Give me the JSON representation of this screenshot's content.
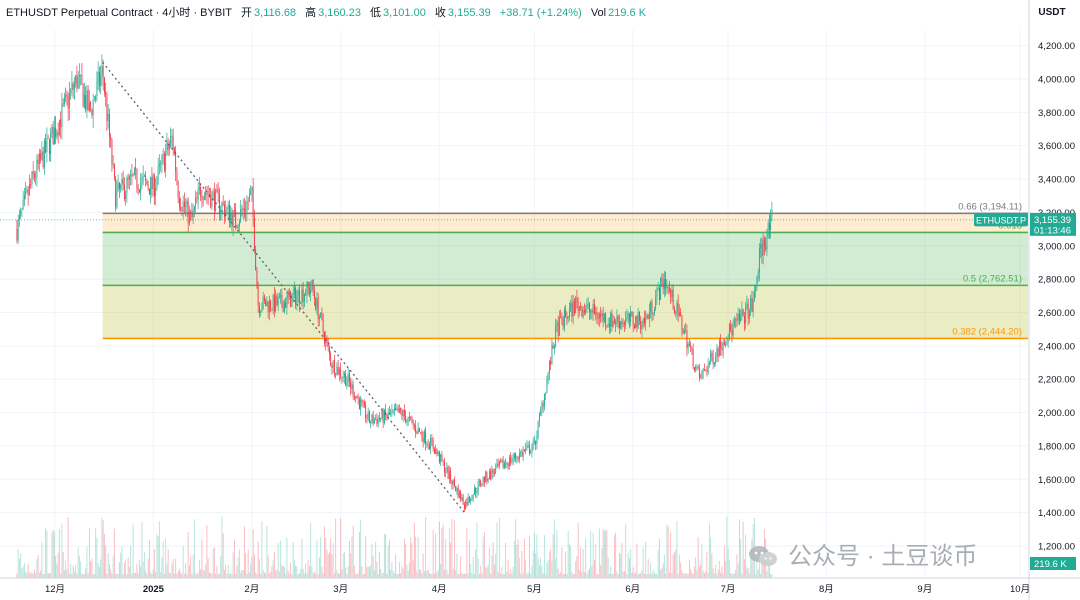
{
  "header": {
    "symbol": "ETHUSDT Perpetual Contract · 4小时 · BYBIT",
    "open_label": "开",
    "open": "3,116.68",
    "high_label": "高",
    "high": "3,160.23",
    "low_label": "低",
    "low": "3,101.00",
    "close_label": "收",
    "close": "3,155.39",
    "change": "+38.71 (+1.24%)",
    "vol_label": "Vol",
    "vol": "219.6 K"
  },
  "currency": "USDT",
  "watermark": "公众号 · 土豆谈币",
  "chart_data": {
    "type": "candlestick",
    "ylim": [
      1100,
      4300
    ],
    "yticks": [
      "4,200.00",
      "4,000.00",
      "3,800.00",
      "3,600.00",
      "3,400.00",
      "3,200.00",
      "3,000.00",
      "2,800.00",
      "2,600.00",
      "2,400.00",
      "2,200.00",
      "2,000.00",
      "1,800.00",
      "1,600.00",
      "1,400.00",
      "1,200.00"
    ],
    "ytick_values": [
      4200,
      4000,
      3800,
      3600,
      3400,
      3200,
      3000,
      2800,
      2600,
      2400,
      2200,
      2000,
      1800,
      1600,
      1400,
      1200
    ],
    "xticks": [
      "12月",
      "2025",
      "2月",
      "3月",
      "4月",
      "5月",
      "6月",
      "7月",
      "8月",
      "9月",
      "10月"
    ],
    "price_path": [
      [
        "2024-11-19",
        3100
      ],
      [
        "2024-11-24",
        3400
      ],
      [
        "2024-11-30",
        3650
      ],
      [
        "2024-12-08",
        4000
      ],
      [
        "2024-12-12",
        3800
      ],
      [
        "2024-12-16",
        4050
      ],
      [
        "2024-12-20",
        3300
      ],
      [
        "2024-12-26",
        3400
      ],
      [
        "2025-01-01",
        3350
      ],
      [
        "2025-01-07",
        3650
      ],
      [
        "2025-01-09",
        3300
      ],
      [
        "2025-01-13",
        3150
      ],
      [
        "2025-01-16",
        3350
      ],
      [
        "2025-01-22",
        3250
      ],
      [
        "2025-01-27",
        3150
      ],
      [
        "2025-02-01",
        3300
      ],
      [
        "2025-02-03",
        2650
      ],
      [
        "2025-02-10",
        2650
      ],
      [
        "2025-02-20",
        2750
      ],
      [
        "2025-02-26",
        2300
      ],
      [
        "2025-03-03",
        2200
      ],
      [
        "2025-03-10",
        1950
      ],
      [
        "2025-03-20",
        2000
      ],
      [
        "2025-03-30",
        1800
      ],
      [
        "2025-04-09",
        1450
      ],
      [
        "2025-04-15",
        1600
      ],
      [
        "2025-04-22",
        1700
      ],
      [
        "2025-05-01",
        1800
      ],
      [
        "2025-05-08",
        2500
      ],
      [
        "2025-05-14",
        2650
      ],
      [
        "2025-05-25",
        2550
      ],
      [
        "2025-06-05",
        2550
      ],
      [
        "2025-06-11",
        2800
      ],
      [
        "2025-06-17",
        2500
      ],
      [
        "2025-06-22",
        2200
      ],
      [
        "2025-06-30",
        2450
      ],
      [
        "2025-07-09",
        2650
      ],
      [
        "2025-07-11",
        2950
      ],
      [
        "2025-07-15",
        3155.39
      ]
    ],
    "fibonacci": [
      {
        "level": "0.66",
        "price": 3194.11,
        "label": "0.66 (3,194.11)",
        "color": "#787b86"
      },
      {
        "level": "0.618",
        "price": 3080,
        "label": "0.618",
        "color": "#4caf50"
      },
      {
        "level": "0.5",
        "price": 2762.51,
        "label": "0.5 (2,762.51)",
        "color": "#4caf50"
      },
      {
        "level": "0.382",
        "price": 2444.2,
        "label": "0.382 (2,444.20)",
        "color": "#ff9800"
      }
    ],
    "trendline": {
      "from": [
        "2024-12-16",
        4100
      ],
      "to": [
        "2025-04-09",
        1400
      ],
      "style": "dotted"
    },
    "last_price": {
      "symbol": "ETHUSDT.P",
      "price": "3,155.39",
      "countdown": "01:13:46",
      "color": "#22ab94"
    },
    "prev_close_price": 3155,
    "volume_last": "219.6 K",
    "colors": {
      "up": "#22ab94",
      "down": "#f23645"
    }
  }
}
